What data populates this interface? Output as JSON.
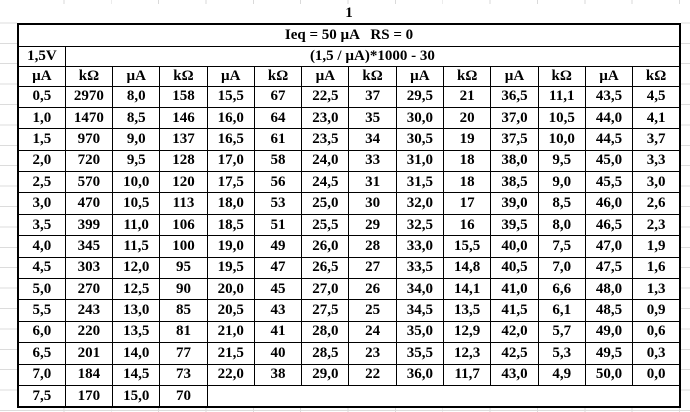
{
  "page_label": "1",
  "table": {
    "title": "Ieq = 50 µA   RS = 0",
    "left_header": "1,5V",
    "formula": "(1,5 / µA)*1000 - 30",
    "column_headers": [
      "µA",
      "kΩ",
      "µA",
      "kΩ",
      "µA",
      "kΩ",
      "µA",
      "kΩ",
      "µA",
      "kΩ",
      "µA",
      "kΩ",
      "µA",
      "kΩ"
    ],
    "rows": [
      [
        "0,5",
        "2970",
        "8,0",
        "158",
        "15,5",
        "67",
        "22,5",
        "37",
        "29,5",
        "21",
        "36,5",
        "11,1",
        "43,5",
        "4,5"
      ],
      [
        "1,0",
        "1470",
        "8,5",
        "146",
        "16,0",
        "64",
        "23,0",
        "35",
        "30,0",
        "20",
        "37,0",
        "10,5",
        "44,0",
        "4,1"
      ],
      [
        "1,5",
        "970",
        "9,0",
        "137",
        "16,5",
        "61",
        "23,5",
        "34",
        "30,5",
        "19",
        "37,5",
        "10,0",
        "44,5",
        "3,7"
      ],
      [
        "2,0",
        "720",
        "9,5",
        "128",
        "17,0",
        "58",
        "24,0",
        "33",
        "31,0",
        "18",
        "38,0",
        "9,5",
        "45,0",
        "3,3"
      ],
      [
        "2,5",
        "570",
        "10,0",
        "120",
        "17,5",
        "56",
        "24,5",
        "31",
        "31,5",
        "18",
        "38,5",
        "9,0",
        "45,5",
        "3,0"
      ],
      [
        "3,0",
        "470",
        "10,5",
        "113",
        "18,0",
        "53",
        "25,0",
        "30",
        "32,0",
        "17",
        "39,0",
        "8,5",
        "46,0",
        "2,6"
      ],
      [
        "3,5",
        "399",
        "11,0",
        "106",
        "18,5",
        "51",
        "25,5",
        "29",
        "32,5",
        "16",
        "39,5",
        "8,0",
        "46,5",
        "2,3"
      ],
      [
        "4,0",
        "345",
        "11,5",
        "100",
        "19,0",
        "49",
        "26,0",
        "28",
        "33,0",
        "15,5",
        "40,0",
        "7,5",
        "47,0",
        "1,9"
      ],
      [
        "4,5",
        "303",
        "12,0",
        "95",
        "19,5",
        "47",
        "26,5",
        "27",
        "33,5",
        "14,8",
        "40,5",
        "7,0",
        "47,5",
        "1,6"
      ],
      [
        "5,0",
        "270",
        "12,5",
        "90",
        "20,0",
        "45",
        "27,0",
        "26",
        "34,0",
        "14,1",
        "41,0",
        "6,6",
        "48,0",
        "1,3"
      ],
      [
        "5,5",
        "243",
        "13,0",
        "85",
        "20,5",
        "43",
        "27,5",
        "25",
        "34,5",
        "13,5",
        "41,5",
        "6,1",
        "48,5",
        "0,9"
      ],
      [
        "6,0",
        "220",
        "13,5",
        "81",
        "21,0",
        "41",
        "28,0",
        "24",
        "35,0",
        "12,9",
        "42,0",
        "5,7",
        "49,0",
        "0,6"
      ],
      [
        "6,5",
        "201",
        "14,0",
        "77",
        "21,5",
        "40",
        "28,5",
        "23",
        "35,5",
        "12,3",
        "42,5",
        "5,3",
        "49,5",
        "0,3"
      ],
      [
        "7,0",
        "184",
        "14,5",
        "73",
        "22,0",
        "38",
        "29,0",
        "22",
        "36,0",
        "11,7",
        "43,0",
        "4,9",
        "50,0",
        "0,0"
      ],
      [
        "7,5",
        "170",
        "15,0",
        "70"
      ]
    ]
  },
  "colors": {
    "table_border": "#000000",
    "grid_line": "#dcdcdc",
    "background": "#ffffff",
    "text": "#000000"
  }
}
